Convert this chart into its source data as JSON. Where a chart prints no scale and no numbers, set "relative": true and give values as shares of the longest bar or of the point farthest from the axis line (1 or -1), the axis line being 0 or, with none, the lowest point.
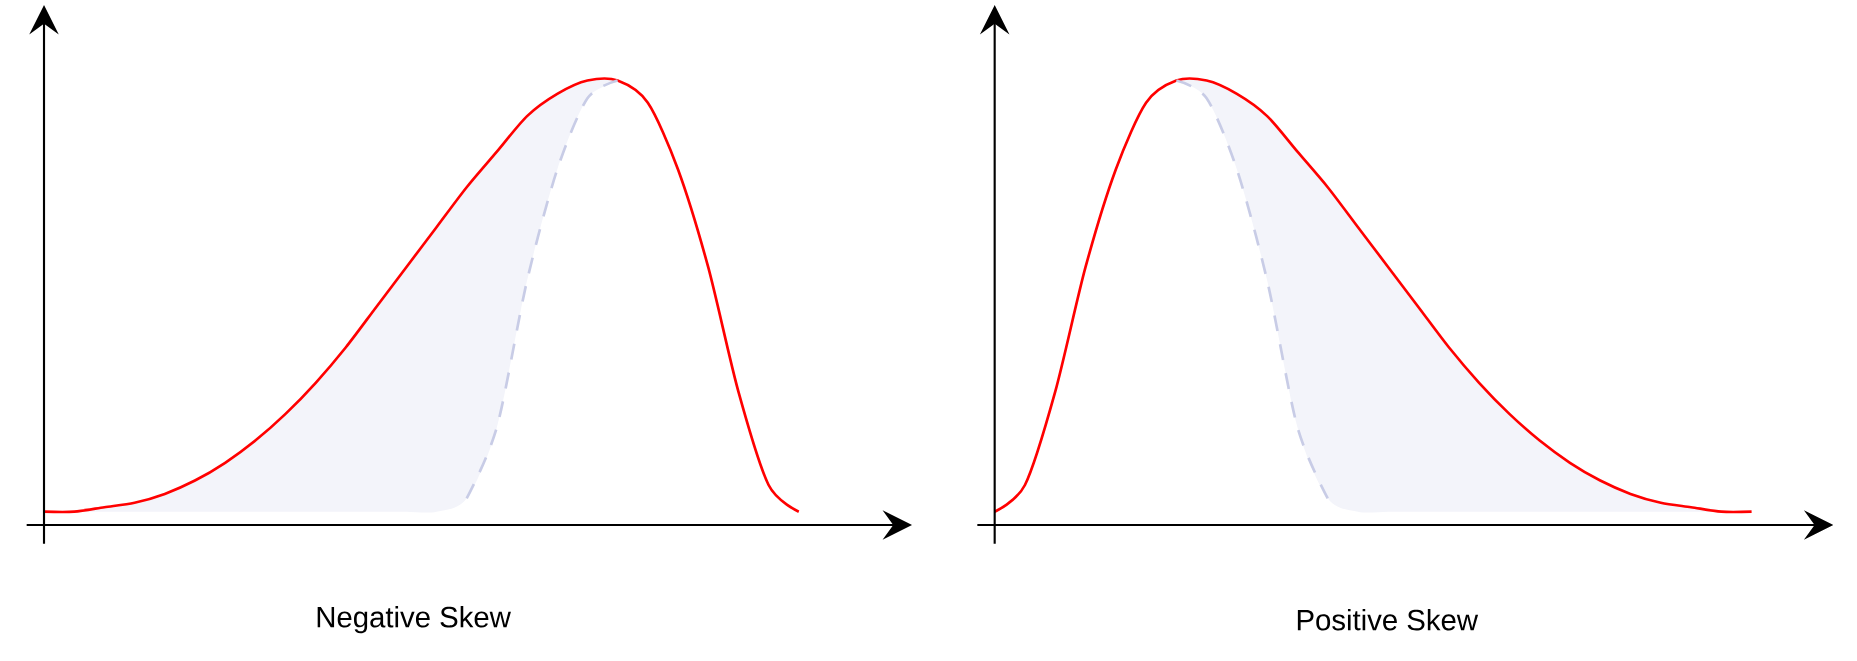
{
  "chart_data": [
    {
      "type": "line",
      "title": "Negative Skew",
      "relative": true,
      "categories": [
        null,
        null,
        null,
        null,
        null,
        null,
        null,
        null,
        null,
        null,
        null,
        null,
        null,
        null,
        null,
        null,
        null,
        null,
        null,
        null,
        null,
        null,
        null,
        null,
        null,
        null
      ],
      "series": [
        {
          "color": "#ff0000",
          "line_style": "solid",
          "values": [
            0.03,
            0.03,
            0.04,
            0.05,
            0.07,
            0.1,
            0.14,
            0.19,
            0.25,
            0.32,
            0.4,
            0.49,
            0.58,
            0.67,
            0.76,
            0.84,
            0.92,
            0.97,
            1.0,
            1.0,
            0.95,
            0.8,
            0.58,
            0.3,
            0.09,
            0.03
          ]
        },
        {
          "color": "#c8cce6",
          "line_style": "dashed",
          "values": [
            null,
            null,
            null,
            null,
            null,
            null,
            null,
            null,
            null,
            null,
            null,
            null,
            null,
            null,
            0.06,
            0.22,
            0.55,
            0.8,
            0.96,
            1.0,
            null,
            null,
            null,
            null,
            null,
            null
          ],
          "lower": [
            0.03,
            0.03,
            0.03,
            0.03,
            0.03,
            0.03,
            0.03,
            0.03,
            0.03,
            0.03,
            0.03,
            0.03,
            0.03,
            0.03,
            0.06,
            0.22,
            0.55,
            0.8,
            0.96,
            1.0,
            null,
            null,
            null,
            null,
            null,
            null
          ],
          "upper": [
            0.03,
            0.03,
            0.04,
            0.05,
            0.07,
            0.1,
            0.14,
            0.19,
            0.25,
            0.32,
            0.4,
            0.49,
            0.58,
            0.67,
            0.76,
            0.84,
            0.92,
            0.97,
            1.0,
            1.0,
            null,
            null,
            null,
            null,
            null,
            null
          ]
        }
      ]
    },
    {
      "type": "line",
      "title": "Positive Skew",
      "relative": true,
      "categories": [
        null,
        null,
        null,
        null,
        null,
        null,
        null,
        null,
        null,
        null,
        null,
        null,
        null,
        null,
        null,
        null,
        null,
        null,
        null,
        null,
        null,
        null,
        null,
        null,
        null,
        null
      ],
      "series": [
        {
          "color": "#ff0000",
          "line_style": "solid",
          "values": [
            0.03,
            0.09,
            0.3,
            0.58,
            0.8,
            0.95,
            1.0,
            1.0,
            0.97,
            0.92,
            0.84,
            0.76,
            0.67,
            0.58,
            0.49,
            0.4,
            0.32,
            0.25,
            0.19,
            0.14,
            0.1,
            0.07,
            0.05,
            0.04,
            0.03,
            0.03
          ]
        },
        {
          "color": "#c8cce6",
          "line_style": "dashed",
          "values": [
            null,
            null,
            null,
            null,
            null,
            null,
            1.0,
            0.96,
            0.8,
            0.55,
            0.22,
            0.06,
            null,
            null,
            null,
            null,
            null,
            null,
            null,
            null,
            null,
            null,
            null,
            null,
            null,
            null
          ],
          "lower": [
            null,
            null,
            null,
            null,
            null,
            null,
            1.0,
            0.96,
            0.8,
            0.55,
            0.22,
            0.06,
            0.03,
            0.03,
            0.03,
            0.03,
            0.03,
            0.03,
            0.03,
            0.03,
            0.03,
            0.03,
            0.03,
            0.03,
            0.03,
            0.03
          ],
          "upper": [
            null,
            null,
            null,
            null,
            null,
            null,
            1.0,
            1.0,
            0.97,
            0.92,
            0.84,
            0.76,
            0.67,
            0.58,
            0.49,
            0.4,
            0.32,
            0.25,
            0.19,
            0.14,
            0.1,
            0.07,
            0.05,
            0.04,
            0.03,
            0.03
          ]
        }
      ]
    }
  ]
}
